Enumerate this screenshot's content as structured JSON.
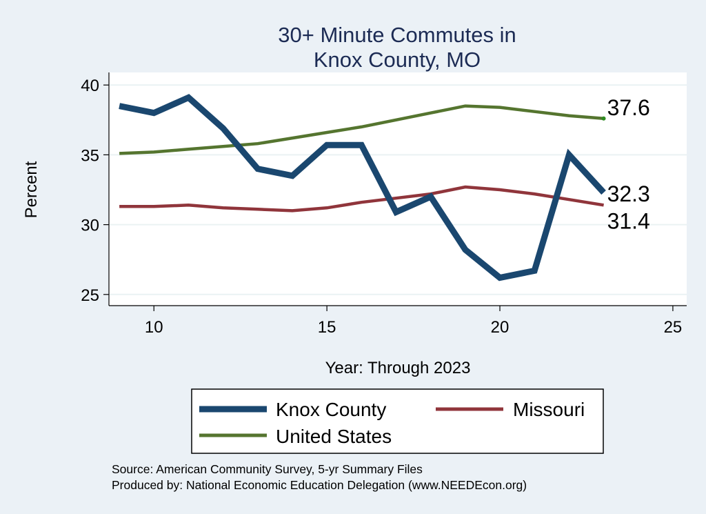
{
  "chart_data": {
    "type": "line",
    "title": [
      "30+ Minute Commutes in",
      "Knox County, MO"
    ],
    "xlabel": "Year: Through 2023",
    "ylabel": "Percent",
    "xlim": [
      8.7,
      25.4
    ],
    "ylim": [
      24.2,
      40.9
    ],
    "xticks": [
      10,
      15,
      20,
      25
    ],
    "yticks": [
      25,
      30,
      35,
      40
    ],
    "grid": true,
    "legend_position": "bottom",
    "x": [
      9,
      10,
      11,
      12,
      13,
      14,
      15,
      16,
      17,
      18,
      19,
      20,
      21,
      22,
      23
    ],
    "series": [
      {
        "name": "Knox County",
        "color": "#1a476f",
        "values": [
          38.5,
          38.0,
          39.1,
          36.9,
          34.0,
          33.5,
          35.7,
          35.7,
          30.9,
          32.0,
          28.2,
          26.2,
          26.7,
          35.0,
          32.3
        ],
        "end_label": "32.3"
      },
      {
        "name": "Missouri",
        "color": "#90353b",
        "values": [
          31.3,
          31.3,
          31.4,
          31.2,
          31.1,
          31.0,
          31.2,
          31.6,
          31.9,
          32.2,
          32.7,
          32.5,
          32.2,
          31.8,
          31.4
        ],
        "end_label": "31.4"
      },
      {
        "name": "United States",
        "color": "#55752f",
        "values": [
          35.1,
          35.2,
          35.4,
          35.6,
          35.8,
          36.2,
          36.6,
          37.0,
          37.5,
          38.0,
          38.5,
          38.4,
          38.1,
          37.8,
          37.6
        ],
        "end_label": "37.6"
      }
    ],
    "end_marker_color": "#2e8b22"
  },
  "notes": {
    "source": "Source: American Community Survey, 5-yr Summary Files",
    "produced": "Produced by: National Economic Education Delegation (www.NEEDEcon.org)"
  }
}
